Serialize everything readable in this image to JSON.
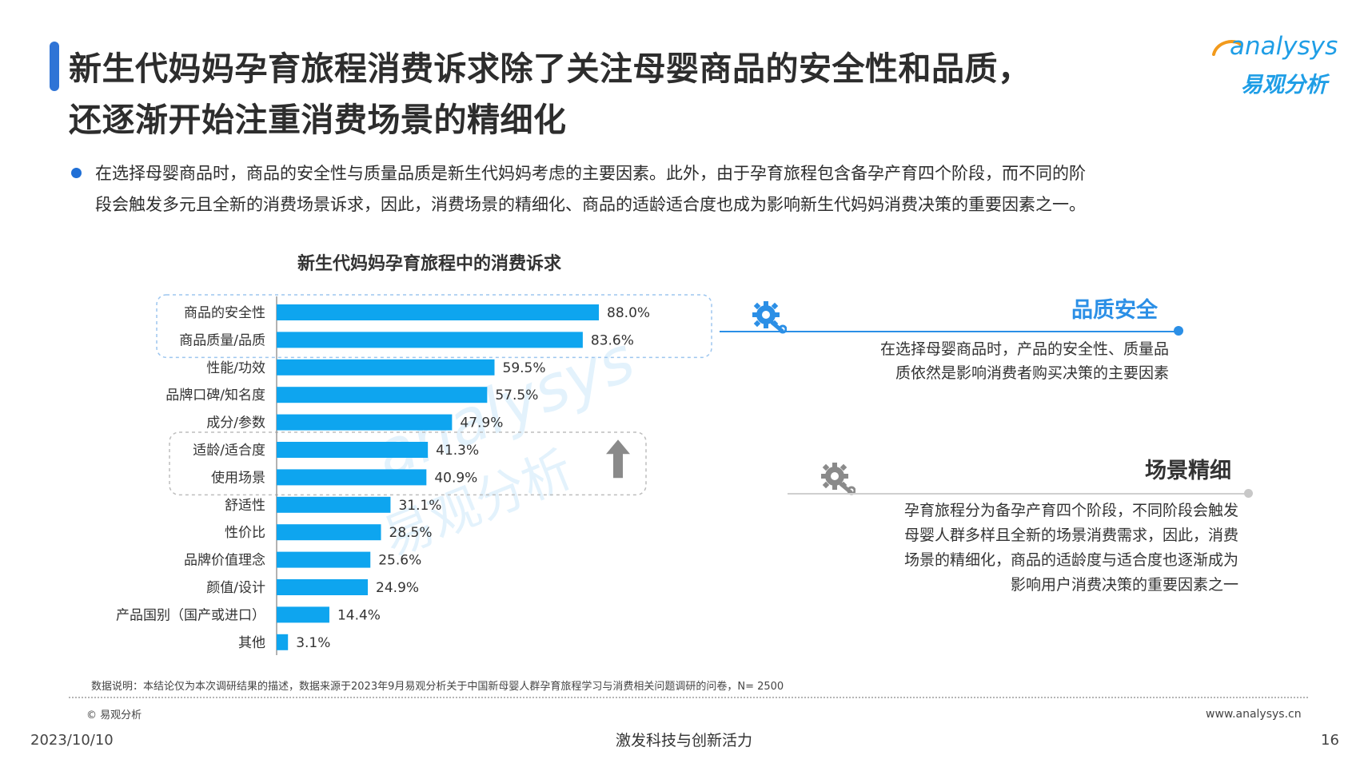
{
  "header": {
    "title_line1": "新生代妈妈孕育旅程消费诉求除了关注母婴商品的安全性和品质，",
    "title_line2": "还逐渐开始注重消费场景的精细化",
    "logo_en": "analysys",
    "logo_cn": "易观分析"
  },
  "intro": {
    "line1": "在选择母婴商品时，商品的安全性与质量品质是新生代妈妈考虑的主要因素。此外，由于孕育旅程包含备孕产育四个阶段，而不同的阶",
    "line2": "段会触发多元且全新的消费场景诉求，因此，消费场景的精细化、商品的适龄适合度也成为影响新生代妈妈消费决策的重要因素之一。"
  },
  "chart_data": {
    "type": "bar",
    "orientation": "horizontal",
    "title": "新生代妈妈孕育旅程中的消费诉求",
    "categories": [
      "商品的安全性",
      "商品质量/品质",
      "性能/功效",
      "品牌口碑/知名度",
      "成分/参数",
      "适龄/适合度",
      "使用场景",
      "舒适性",
      "性价比",
      "品牌价值理念",
      "颜值/设计",
      "产品国别（国产或进口）",
      "其他"
    ],
    "values": [
      88.0,
      83.6,
      59.5,
      57.5,
      47.9,
      41.3,
      40.9,
      31.1,
      28.5,
      25.6,
      24.9,
      14.4,
      3.1
    ],
    "value_labels": [
      "88.0%",
      "83.6%",
      "59.5%",
      "57.5%",
      "47.9%",
      "41.3%",
      "40.9%",
      "31.1%",
      "28.5%",
      "25.6%",
      "24.9%",
      "14.4%",
      "3.1%"
    ],
    "unit": "%",
    "xlim": [
      0,
      100
    ],
    "grid": false,
    "bar_color": "#0ea5ef",
    "highlight_groups": [
      [
        "商品的安全性",
        "商品质量/品质"
      ],
      [
        "适龄/适合度",
        "使用场景"
      ]
    ],
    "watermark_en": "analysys",
    "watermark_cn": "易观分析"
  },
  "annotations": {
    "quality": {
      "heading": "品质安全",
      "lines": [
        "在选择母婴商品时，产品的安全性、质量品",
        "质依然是影响消费者购买决策的主要因素"
      ]
    },
    "scene": {
      "heading": "场景精细",
      "lines": [
        "孕育旅程分为备孕产育四个阶段，不同阶段会触发",
        "母婴人群多样且全新的场景消费需求，因此，消费",
        "场景的精细化，商品的适龄度与适合度也逐渐成为",
        "影响用户消费决策的重要因素之一"
      ]
    }
  },
  "footer": {
    "source": "数据说明：本结论仅为本次调研结果的描述，数据来源于2023年9月易观分析关于中国新母婴人群孕育旅程学习与消费相关问题调研的问卷，N= 2500",
    "copyright": "© 易观分析",
    "website": "www.analysys.cn",
    "date": "2023/10/10",
    "slogan": "激发科技与创新活力",
    "page": "16"
  },
  "colors": {
    "title_bar": "#2f74d6",
    "accent_blue": "#2b8fe6",
    "bar": "#0ea5ef",
    "highlight_box": "#9dc6ef"
  },
  "icons": [
    "gear-wrench-icon",
    "arrow-up-icon"
  ]
}
